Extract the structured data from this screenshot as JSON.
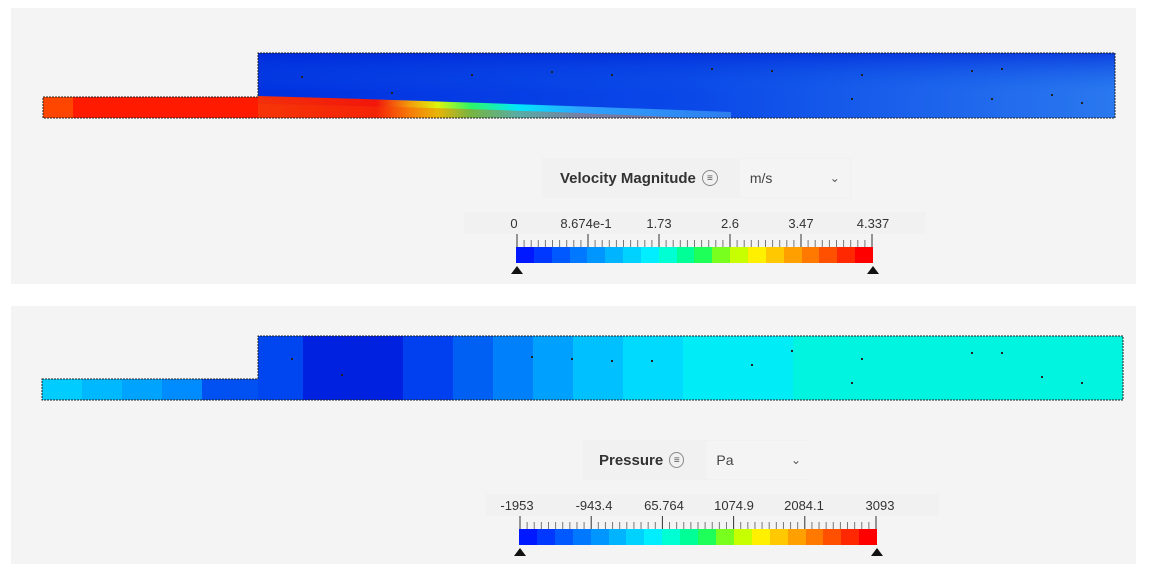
{
  "velocity": {
    "title": "Velocity Magnitude",
    "info_glyph": "≡",
    "unit": "m/s",
    "ticks": [
      "0",
      "8.674e-1",
      "1.73",
      "2.6",
      "3.47",
      "4.337"
    ],
    "min": 0,
    "max": 4.337,
    "colorbar_colors": [
      "#0018ff",
      "#0038ff",
      "#0058ff",
      "#0078ff",
      "#0096ff",
      "#00b4ff",
      "#00d2ff",
      "#00eeff",
      "#00ffd2",
      "#00ff96",
      "#1eff5a",
      "#78ff1e",
      "#c8ff00",
      "#fff000",
      "#ffc800",
      "#ffa000",
      "#ff7800",
      "#ff5000",
      "#ff2800",
      "#ff0000"
    ]
  },
  "pressure": {
    "title": "Pressure",
    "info_glyph": "≡",
    "unit": "Pa",
    "ticks": [
      "-1953",
      "-943.4",
      "65.764",
      "1074.9",
      "2084.1",
      "3093"
    ],
    "min": -1953,
    "max": 3093,
    "colorbar_colors": [
      "#0018ff",
      "#0038ff",
      "#0058ff",
      "#0078ff",
      "#0096ff",
      "#00b4ff",
      "#00d2ff",
      "#00eeff",
      "#00ffd2",
      "#00ff96",
      "#1eff5a",
      "#78ff1e",
      "#c8ff00",
      "#fff000",
      "#ffc800",
      "#ffa000",
      "#ff7800",
      "#ff5000",
      "#ff2800",
      "#ff0000"
    ]
  }
}
